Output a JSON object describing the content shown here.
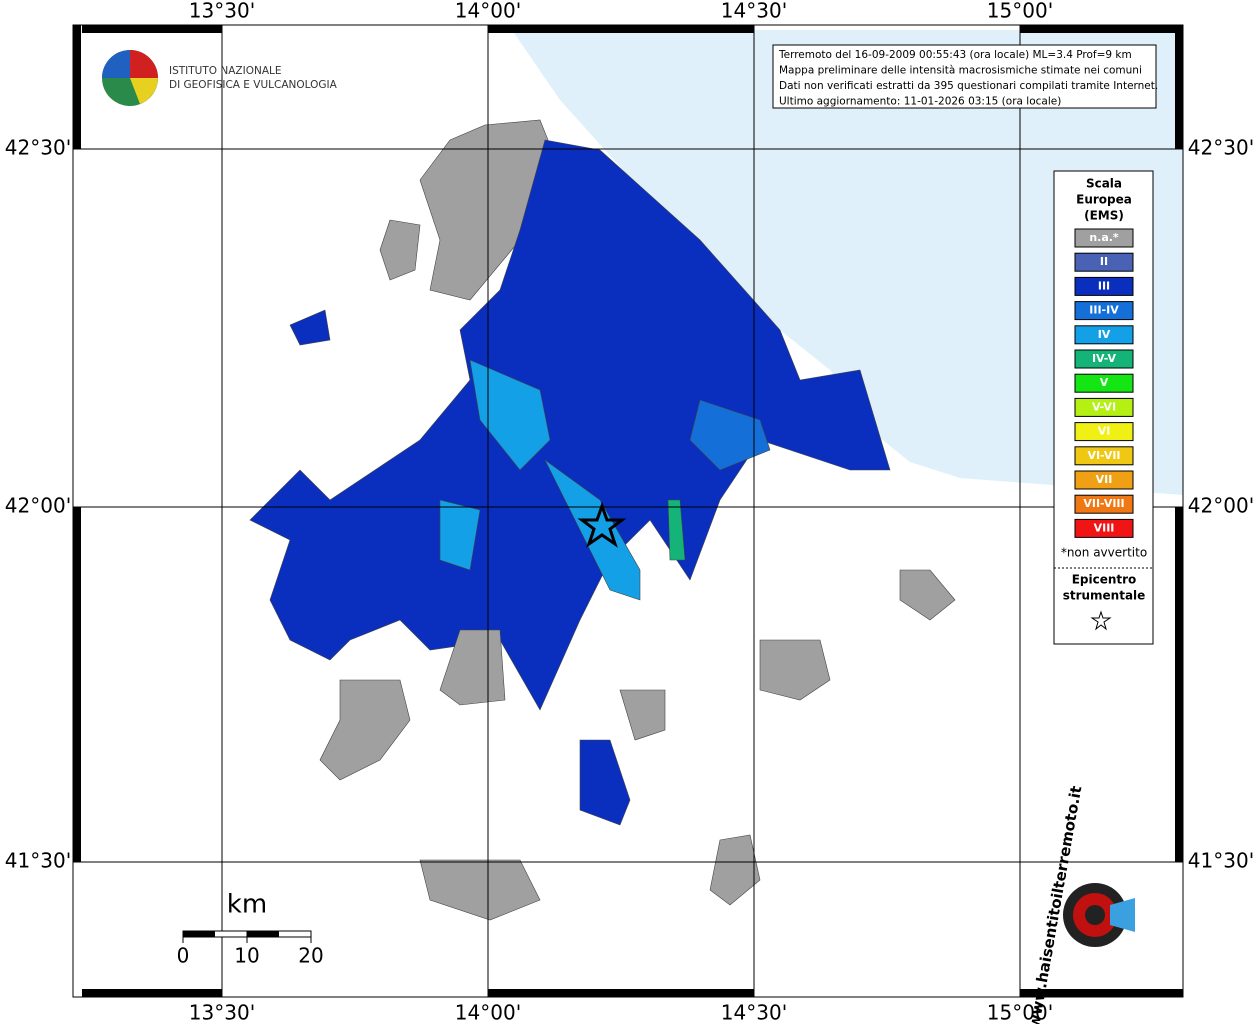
{
  "map": {
    "lon_labels": [
      "13°30'",
      "14°00'",
      "14°30'",
      "15°00'"
    ],
    "lat_labels": [
      "42°30'",
      "42°00'",
      "41°30'"
    ]
  },
  "info": {
    "lines": [
      "Terremoto del 16-09-2009 00:55:43 (ora locale) ML=3.4 Prof=9 km",
      "Mappa preliminare delle intensità macrosismiche stimate nei comuni",
      "Dati non verificati estratti da 395 questionari compilati tramite Internet.",
      "Ultimo aggiornamento: 11-01-2026 03:15 (ora locale)"
    ]
  },
  "legend": {
    "title": [
      "Scala",
      "Europea",
      "(EMS)"
    ],
    "items": [
      {
        "label": "n.a.*",
        "color": "#a0a0a0"
      },
      {
        "label": "II",
        "color": "#4a62b5"
      },
      {
        "label": "III",
        "color": "#0a2fbe"
      },
      {
        "label": "III-IV",
        "color": "#1470d8"
      },
      {
        "label": "IV",
        "color": "#14a0e6"
      },
      {
        "label": "IV-V",
        "color": "#14b478"
      },
      {
        "label": "V",
        "color": "#14e614"
      },
      {
        "label": "V-VI",
        "color": "#b4f014"
      },
      {
        "label": "VI",
        "color": "#f0f014"
      },
      {
        "label": "VI-VII",
        "color": "#f0c814"
      },
      {
        "label": "VII",
        "color": "#f0a014"
      },
      {
        "label": "VII-VIII",
        "color": "#f07814"
      },
      {
        "label": "VIII",
        "color": "#f01414"
      }
    ],
    "note": "*non avvertito",
    "epicenter": [
      "Epicentro",
      "strumentale"
    ]
  },
  "scale_bar": {
    "unit": "km",
    "ticks": [
      0,
      10,
      20
    ]
  },
  "logo": {
    "ingv": [
      "ISTITUTO NAZIONALE",
      "DI GEOFISICA E VULCANOLOGIA"
    ],
    "hsit": "www.haisentitoilterremoto.it"
  }
}
